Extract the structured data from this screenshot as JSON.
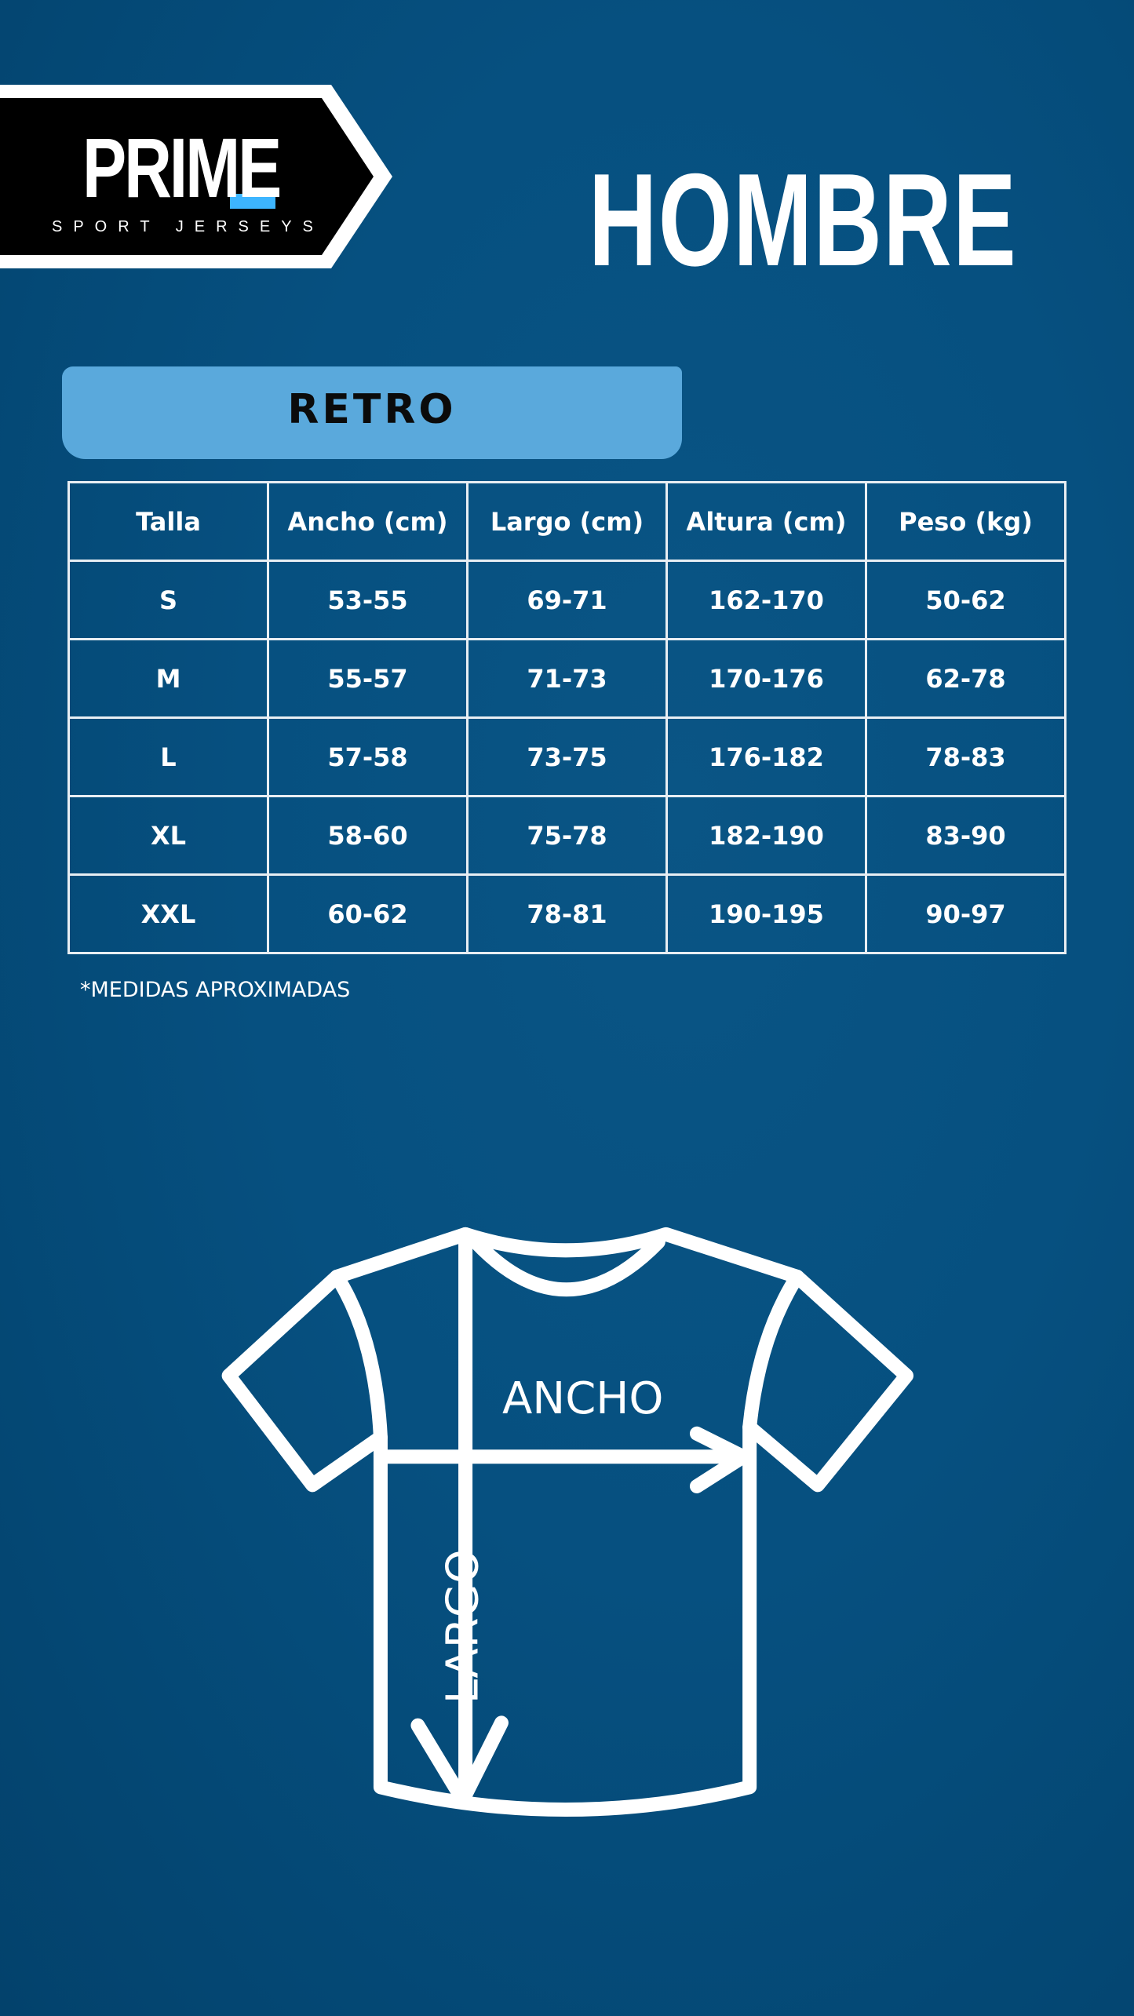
{
  "logo": {
    "brand": "PRIME",
    "tagline": "SPORT JERSEYS",
    "accent": "#3db5ff"
  },
  "header": {
    "title": "HOMBRE"
  },
  "section": {
    "label": "RETRO",
    "color": "#5aa9dc"
  },
  "table": {
    "headers": [
      "Talla",
      "Ancho (cm)",
      "Largo (cm)",
      "Altura (cm)",
      "Peso (kg)"
    ],
    "rows": [
      [
        "S",
        "53-55",
        "69-71",
        "162-170",
        "50-62"
      ],
      [
        "M",
        "55-57",
        "71-73",
        "170-176",
        "62-78"
      ],
      [
        "L",
        "57-58",
        "73-75",
        "176-182",
        "78-83"
      ],
      [
        "XL",
        "58-60",
        "75-78",
        "182-190",
        "83-90"
      ],
      [
        "XXL",
        "60-62",
        "78-81",
        "190-195",
        "90-97"
      ]
    ]
  },
  "note": "*MEDIDAS APROXIMADAS",
  "diagram": {
    "width_label": "ANCHO",
    "length_label": "LARGO"
  }
}
